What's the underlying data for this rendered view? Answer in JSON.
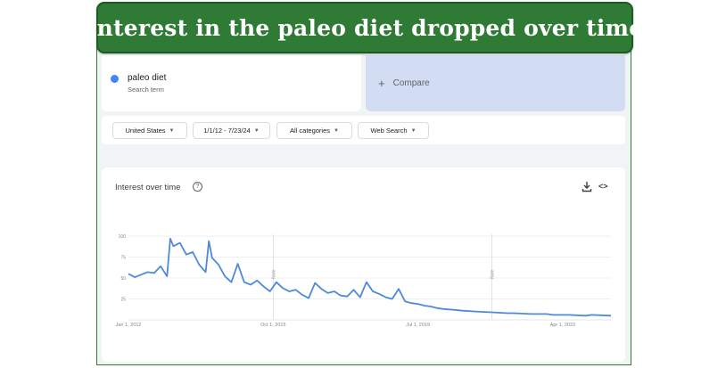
{
  "banner": {
    "title": "Interest in the paleo diet dropped over time"
  },
  "search_term": {
    "name": "paleo diet",
    "subtitle": "Search term",
    "color": "#4285f4"
  },
  "compare": {
    "icon": "plus-icon",
    "plus": "+",
    "label": "Compare"
  },
  "filters": {
    "region": "United States",
    "date_range": "1/1/12 - 7/23/24",
    "category": "All categories",
    "search_type": "Web Search"
  },
  "chart_panel": {
    "title": "Interest over time",
    "help_icon": "help-circle-icon",
    "help_glyph": "?",
    "download_icon": "download-icon",
    "embed_icon": "embed-code-icon",
    "embed_glyph": "<>"
  },
  "chart_data": {
    "type": "line",
    "title": "Interest over time",
    "ylim": [
      0,
      100
    ],
    "yticks": [
      "100",
      "75",
      "50",
      "25"
    ],
    "xticks": [
      "Jan 1, 2012",
      "Oct 1, 2015",
      "Jul 1, 2019",
      "Apr 1, 2023"
    ],
    "series_color": "#4e8ad9",
    "grid": true,
    "notes": [
      {
        "label": "Note",
        "x": "2015-10"
      },
      {
        "label": "Note",
        "x": "2021-06"
      }
    ],
    "x": [
      "2012-01",
      "2012-03",
      "2012-05",
      "2012-07",
      "2012-09",
      "2012-11",
      "2013-01",
      "2013-02",
      "2013-03",
      "2013-05",
      "2013-07",
      "2013-09",
      "2013-11",
      "2014-01",
      "2014-02",
      "2014-03",
      "2014-05",
      "2014-07",
      "2014-09",
      "2014-11",
      "2015-01",
      "2015-03",
      "2015-05",
      "2015-07",
      "2015-09",
      "2015-11",
      "2016-01",
      "2016-03",
      "2016-05",
      "2016-07",
      "2016-09",
      "2016-11",
      "2017-01",
      "2017-03",
      "2017-05",
      "2017-07",
      "2017-09",
      "2017-11",
      "2018-01",
      "2018-03",
      "2018-05",
      "2018-07",
      "2018-09",
      "2018-11",
      "2019-01",
      "2019-03",
      "2019-05",
      "2019-07",
      "2019-09",
      "2019-11",
      "2020-01",
      "2020-03",
      "2020-06",
      "2020-09",
      "2021-01",
      "2021-06",
      "2021-11",
      "2022-01",
      "2022-06",
      "2022-11",
      "2023-01",
      "2023-06",
      "2023-11",
      "2024-01",
      "2024-07"
    ],
    "values": [
      55,
      51,
      54,
      57,
      56,
      64,
      52,
      97,
      88,
      92,
      78,
      81,
      66,
      57,
      94,
      74,
      66,
      52,
      45,
      67,
      45,
      42,
      47,
      40,
      34,
      45,
      38,
      34,
      36,
      30,
      26,
      44,
      37,
      32,
      34,
      29,
      28,
      36,
      27,
      45,
      34,
      31,
      27,
      25,
      37,
      22,
      20,
      19,
      17,
      16,
      14,
      13,
      12,
      11,
      10,
      9,
      8,
      8,
      7,
      7,
      6,
      6,
      5,
      6,
      5
    ]
  }
}
